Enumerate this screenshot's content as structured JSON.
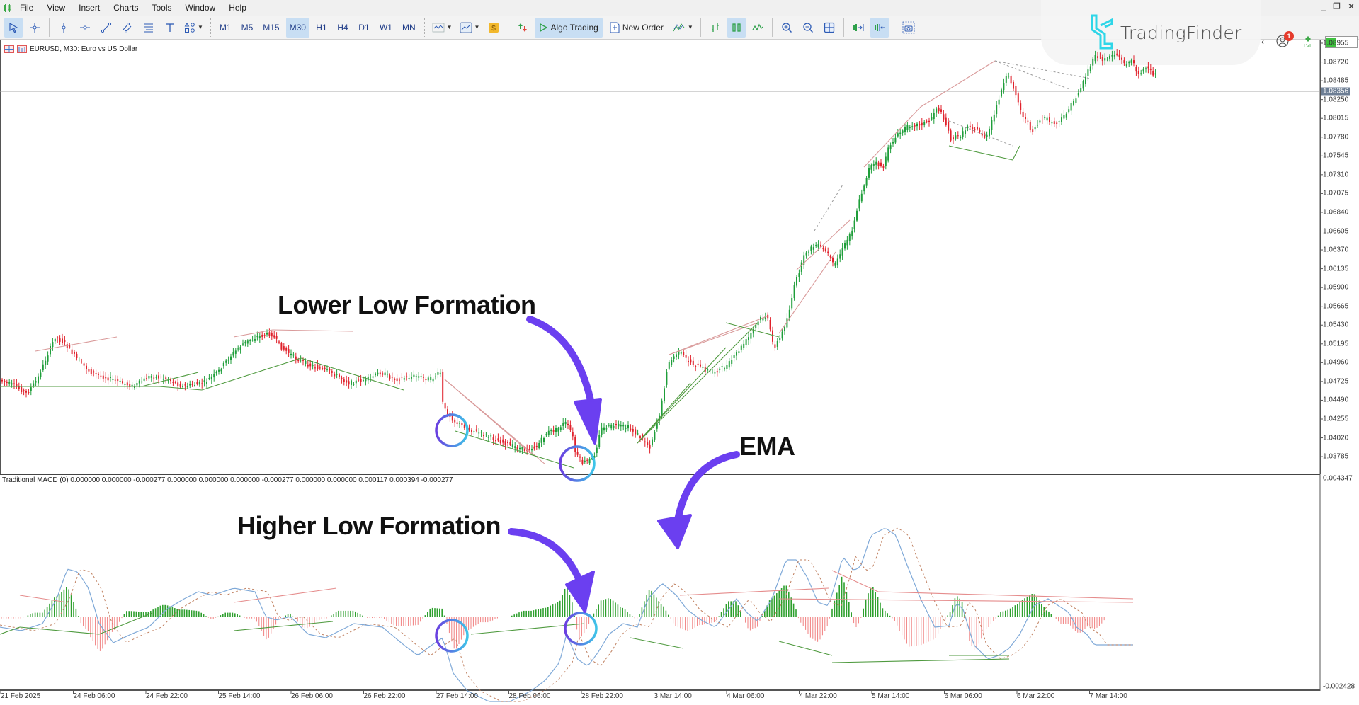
{
  "menubar": {
    "items": [
      "File",
      "View",
      "Insert",
      "Charts",
      "Tools",
      "Window",
      "Help"
    ]
  },
  "toolbar": {
    "timeframes": [
      "M1",
      "M5",
      "M15",
      "M30",
      "H1",
      "H4",
      "D1",
      "W1",
      "MN"
    ],
    "active_timeframe": "M30",
    "algo_trading_label": "Algo Trading",
    "new_order_label": "New Order",
    "notification_count": "1",
    "window_controls": [
      "_",
      "❐",
      "✕"
    ]
  },
  "watermark": {
    "brand": "TradingFinder"
  },
  "chart": {
    "title": "EURUSD, M30:  Euro vs US Dollar",
    "symbol": "EURUSD",
    "timeframe": "M30",
    "price_axis": [
      "1.08955",
      "1.08720",
      "1.08485",
      "1.08250",
      "1.08015",
      "1.07780",
      "1.07545",
      "1.07310",
      "1.07075",
      "1.06840",
      "1.06605",
      "1.06370",
      "1.06135",
      "1.05900",
      "1.05665",
      "1.05430",
      "1.05195",
      "1.04960",
      "1.04725",
      "1.04490",
      "1.04255",
      "1.04020",
      "1.03785"
    ],
    "current_price": "1.08356",
    "colors": {
      "bull": "#1f9e3a",
      "bear": "#e0212b",
      "resistance": "#d99a9a",
      "support": "#4f9a3f",
      "macd_line": "#7fa9d8",
      "signal_line": "#c08060"
    }
  },
  "macd": {
    "title": "Traditional MACD (0) 0.000000 0.000000 -0.000277 0.000000 0.000000 0.000000 -0.000277 0.000000 0.000000 0.000117 0.000394 -0.000277",
    "axis_top": "0.004347",
    "axis_bottom": "-0.002428"
  },
  "time_axis": [
    "21 Feb 2025",
    "24 Feb 06:00",
    "24 Feb 22:00",
    "25 Feb 14:00",
    "26 Feb 06:00",
    "26 Feb 22:00",
    "27 Feb 14:00",
    "28 Feb 06:00",
    "28 Feb 22:00",
    "3 Mar 14:00",
    "4 Mar 06:00",
    "4 Mar 22:00",
    "5 Mar 14:00",
    "6 Mar 06:00",
    "6 Mar 22:00",
    "7 Mar 14:00"
  ],
  "annotations": {
    "lower_low": "Lower Low Formation",
    "higher_low": "Higher Low Formation",
    "ema": "EMA"
  }
}
